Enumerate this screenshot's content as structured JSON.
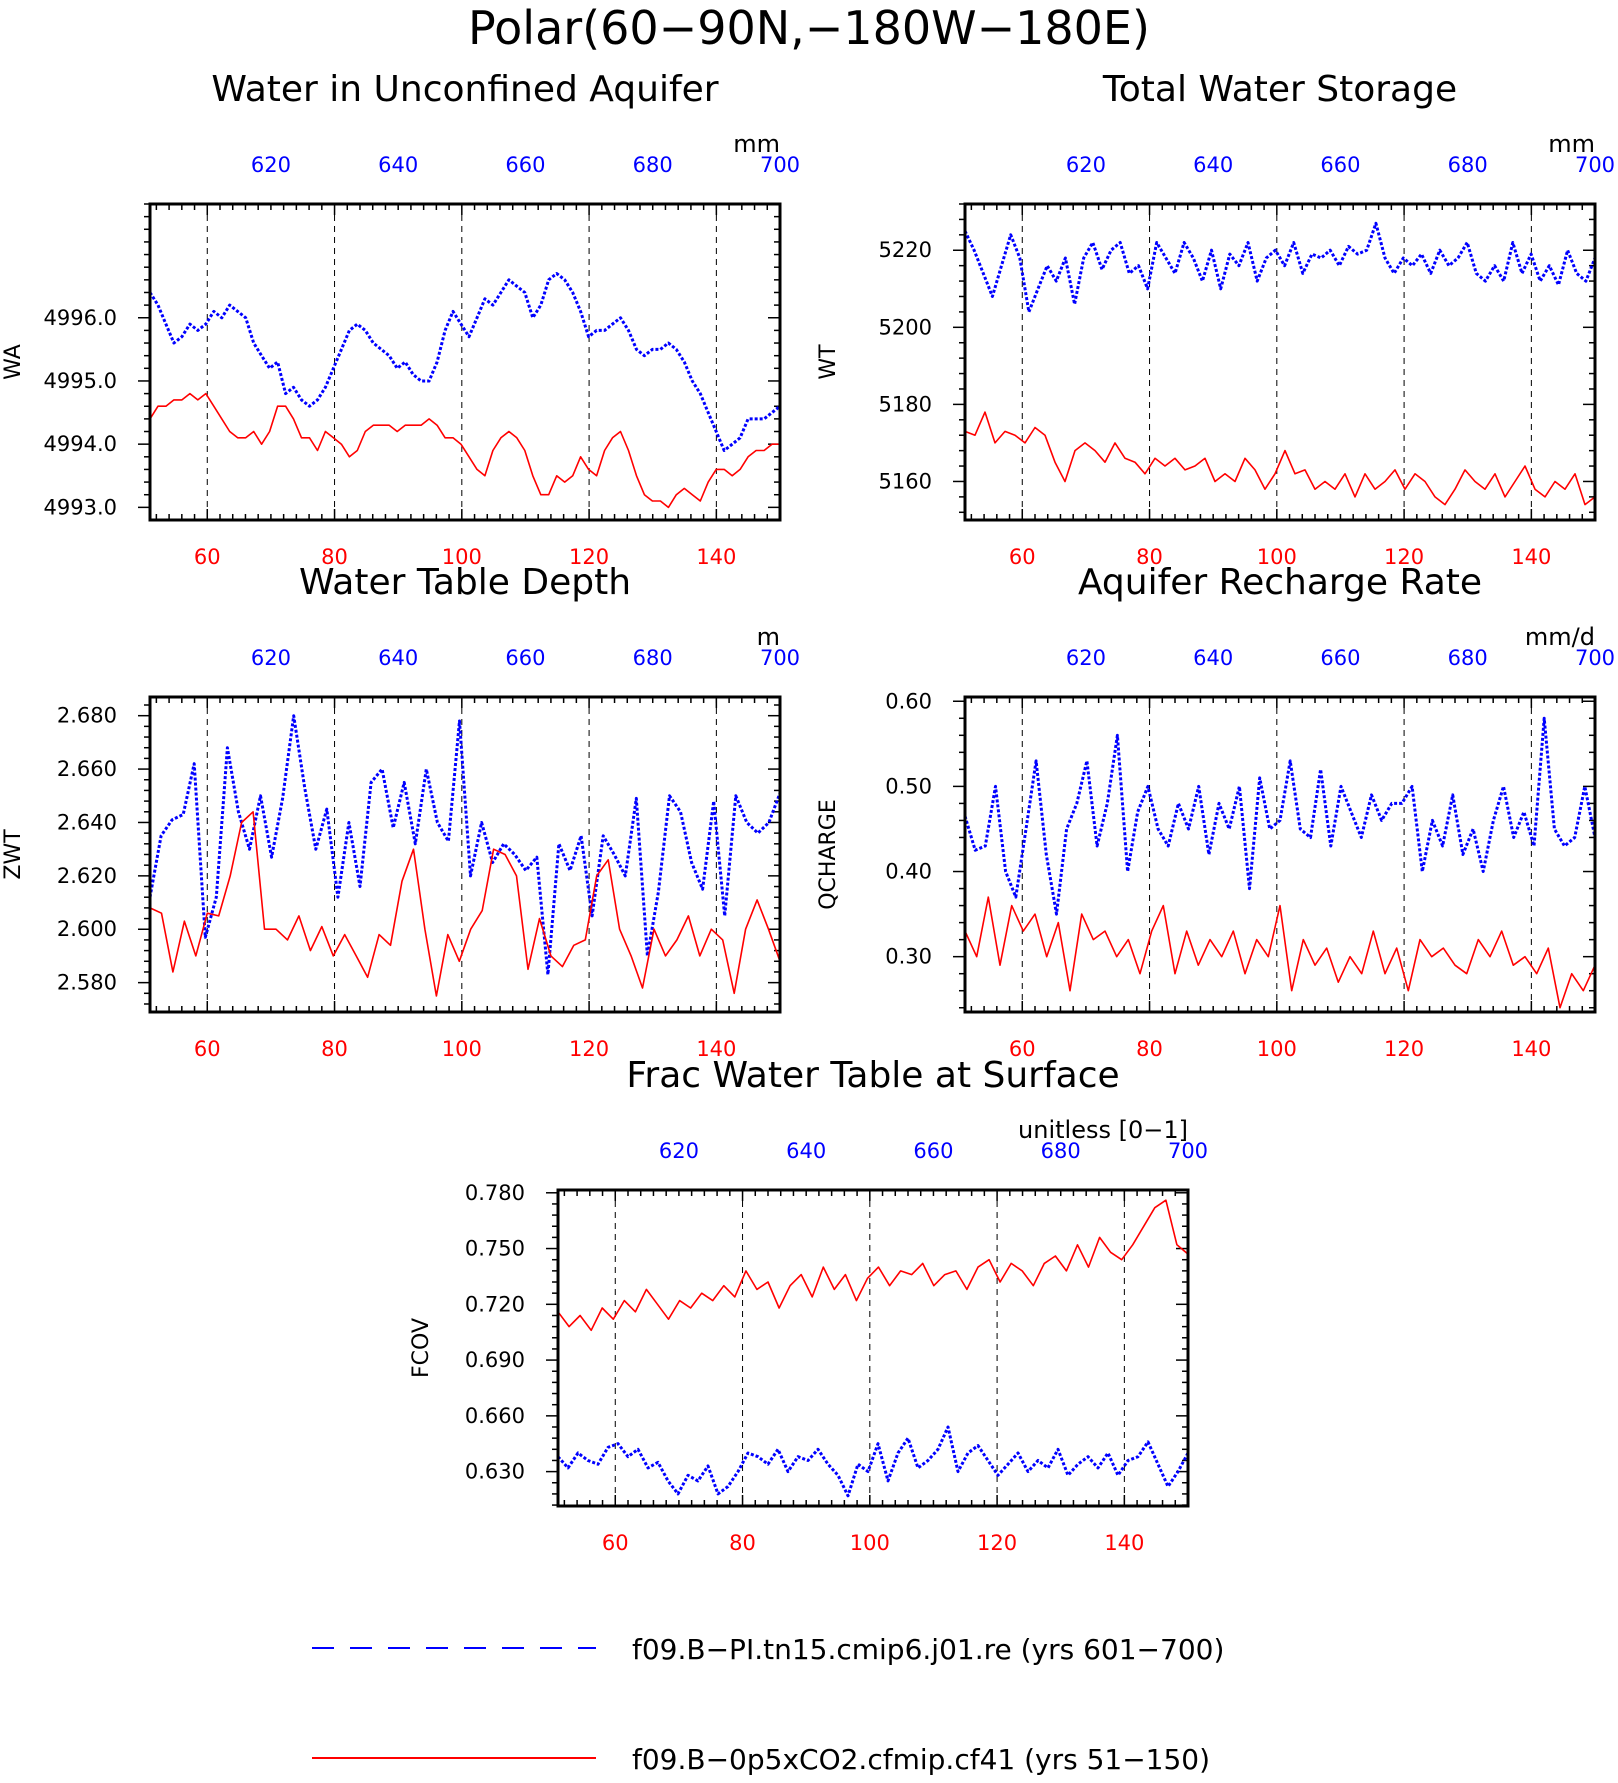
{
  "figure_title": "Polar(60−90N,−180W−180E)",
  "legend": [
    {
      "label": "f09.B−PI.tn15.cmip6.j01.re (yrs 601−700)",
      "color": "#0000ff",
      "style": "dashed"
    },
    {
      "label": "f09.B−0p5xCO2.cfmip.cf41 (yrs 51−150)",
      "color": "#ff0000",
      "style": "solid"
    }
  ],
  "colors": {
    "series_a": "#0000ff",
    "series_b": "#ff0000",
    "axis": "#000000"
  },
  "chart_data": [
    {
      "type": "line",
      "title": "Water in Unconfined Aquifer",
      "ylabel": "WA",
      "units": "mm",
      "ylim": [
        4992.8,
        4997.8
      ],
      "yticks": [
        4993.0,
        4994.0,
        4995.0,
        4996.0
      ],
      "ytick_labels": [
        "4993.0",
        "4994.0",
        "4995.0",
        "4996.0"
      ],
      "x_bottom_ticks": [
        60,
        80,
        100,
        120,
        140
      ],
      "x_top_ticks": [
        620,
        640,
        660,
        680,
        700
      ],
      "grid_x": [
        60,
        80,
        100,
        120,
        140
      ],
      "series": [
        {
          "years": "601-700",
          "style": "dotted",
          "color": "#0000ff",
          "values": [
            4996.4,
            4996.2,
            4995.9,
            4995.6,
            4995.7,
            4995.9,
            4995.8,
            4995.9,
            4996.1,
            4996.0,
            4996.2,
            4996.1,
            4996.0,
            4995.6,
            4995.4,
            4995.2,
            4995.3,
            4994.8,
            4994.9,
            4994.7,
            4994.6,
            4994.7,
            4994.9,
            4995.2,
            4995.5,
            4995.8,
            4995.9,
            4995.8,
            4995.6,
            4995.5,
            4995.4,
            4995.2,
            4995.3,
            4995.1,
            4995.0,
            4995.0,
            4995.3,
            4995.8,
            4996.1,
            4995.9,
            4995.7,
            4996.0,
            4996.3,
            4996.2,
            4996.4,
            4996.6,
            4996.5,
            4996.4,
            4996.0,
            4996.2,
            4996.6,
            4996.7,
            4996.6,
            4996.4,
            4996.1,
            4995.7,
            4995.8,
            4995.8,
            4995.9,
            4996.0,
            4995.8,
            4995.5,
            4995.4,
            4995.5,
            4995.5,
            4995.6,
            4995.5,
            4995.3,
            4995.0,
            4994.8,
            4994.5,
            4994.2,
            4993.9,
            4994.0,
            4994.1,
            4994.4,
            4994.4,
            4994.4,
            4994.5,
            4994.6
          ]
        },
        {
          "years": "51-150",
          "style": "solid",
          "color": "#ff0000",
          "values": [
            4994.4,
            4994.6,
            4994.6,
            4994.7,
            4994.7,
            4994.8,
            4994.7,
            4994.8,
            4994.6,
            4994.4,
            4994.2,
            4994.1,
            4994.1,
            4994.2,
            4994.0,
            4994.2,
            4994.6,
            4994.6,
            4994.4,
            4994.1,
            4994.1,
            4993.9,
            4994.2,
            4994.1,
            4994.0,
            4993.8,
            4993.9,
            4994.2,
            4994.3,
            4994.3,
            4994.3,
            4994.2,
            4994.3,
            4994.3,
            4994.3,
            4994.4,
            4994.3,
            4994.1,
            4994.1,
            4994.0,
            4993.8,
            4993.6,
            4993.5,
            4993.9,
            4994.1,
            4994.2,
            4994.1,
            4993.9,
            4993.5,
            4993.2,
            4993.2,
            4993.5,
            4993.4,
            4993.5,
            4993.8,
            4993.6,
            4993.5,
            4993.9,
            4994.1,
            4994.2,
            4993.9,
            4993.5,
            4993.2,
            4993.1,
            4993.1,
            4993.0,
            4993.2,
            4993.3,
            4993.2,
            4993.1,
            4993.4,
            4993.6,
            4993.6,
            4993.5,
            4993.6,
            4993.8,
            4993.9,
            4993.9,
            4994.0,
            4994.0
          ]
        }
      ]
    },
    {
      "type": "line",
      "title": "Total Water Storage",
      "ylabel": "WT",
      "units": "mm",
      "ylim": [
        5150,
        5232
      ],
      "yticks": [
        5160,
        5180,
        5200,
        5220
      ],
      "ytick_labels": [
        "5160",
        "5180",
        "5200",
        "5220"
      ],
      "x_bottom_ticks": [
        60,
        80,
        100,
        120,
        140
      ],
      "x_top_ticks": [
        620,
        640,
        660,
        680,
        700
      ],
      "grid_x": [
        60,
        80,
        100,
        120,
        140
      ],
      "series": [
        {
          "years": "601-700",
          "style": "dotted",
          "color": "#0000ff",
          "values": [
            5225,
            5220,
            5214,
            5208,
            5216,
            5224,
            5218,
            5204,
            5210,
            5216,
            5212,
            5218,
            5206,
            5218,
            5222,
            5215,
            5220,
            5222,
            5214,
            5216,
            5210,
            5222,
            5218,
            5214,
            5222,
            5218,
            5212,
            5220,
            5210,
            5219,
            5216,
            5222,
            5212,
            5218,
            5220,
            5216,
            5222,
            5214,
            5219,
            5218,
            5220,
            5216,
            5221,
            5219,
            5220,
            5227,
            5218,
            5214,
            5218,
            5216,
            5219,
            5214,
            5220,
            5216,
            5218,
            5222,
            5214,
            5212,
            5216,
            5212,
            5222,
            5214,
            5219,
            5212,
            5216,
            5211,
            5220,
            5214,
            5212,
            5218
          ]
        },
        {
          "years": "51-150",
          "style": "solid",
          "color": "#ff0000",
          "values": [
            5173,
            5172,
            5178,
            5170,
            5173,
            5172,
            5170,
            5174,
            5172,
            5165,
            5160,
            5168,
            5170,
            5168,
            5165,
            5170,
            5166,
            5165,
            5162,
            5166,
            5164,
            5166,
            5163,
            5164,
            5166,
            5160,
            5162,
            5160,
            5166,
            5163,
            5158,
            5162,
            5168,
            5162,
            5163,
            5158,
            5160,
            5158,
            5162,
            5156,
            5162,
            5158,
            5160,
            5163,
            5158,
            5162,
            5160,
            5156,
            5154,
            5158,
            5163,
            5160,
            5158,
            5162,
            5156,
            5160,
            5164,
            5158,
            5156,
            5160,
            5158,
            5162,
            5154,
            5156
          ]
        }
      ]
    },
    {
      "type": "line",
      "title": "Water Table Depth",
      "ylabel": "ZWT",
      "units": "m",
      "ylim": [
        2.569,
        2.687
      ],
      "yticks": [
        2.58,
        2.6,
        2.62,
        2.64,
        2.66,
        2.68
      ],
      "ytick_labels": [
        "2.580",
        "2.600",
        "2.620",
        "2.640",
        "2.660",
        "2.680"
      ],
      "x_bottom_ticks": [
        60,
        80,
        100,
        120,
        140
      ],
      "x_top_ticks": [
        620,
        640,
        660,
        680,
        700
      ],
      "grid_x": [
        60,
        80,
        100,
        120,
        140
      ],
      "series": [
        {
          "years": "601-700",
          "style": "dotted",
          "color": "#0000ff",
          "values": [
            2.612,
            2.635,
            2.641,
            2.643,
            2.662,
            2.597,
            2.612,
            2.668,
            2.644,
            2.63,
            2.65,
            2.627,
            2.649,
            2.68,
            2.653,
            2.63,
            2.645,
            2.612,
            2.64,
            2.616,
            2.655,
            2.66,
            2.638,
            2.655,
            2.632,
            2.66,
            2.64,
            2.633,
            2.678,
            2.62,
            2.64,
            2.625,
            2.632,
            2.628,
            2.622,
            2.627,
            2.583,
            2.632,
            2.622,
            2.635,
            2.605,
            2.635,
            2.628,
            2.62,
            2.649,
            2.59,
            2.614,
            2.65,
            2.644,
            2.625,
            2.615,
            2.648,
            2.605,
            2.65,
            2.64,
            2.636,
            2.64,
            2.651
          ]
        },
        {
          "years": "51-150",
          "style": "solid",
          "color": "#ff0000",
          "values": [
            2.608,
            2.606,
            2.584,
            2.603,
            2.59,
            2.606,
            2.605,
            2.62,
            2.64,
            2.644,
            2.6,
            2.6,
            2.596,
            2.605,
            2.592,
            2.601,
            2.59,
            2.598,
            2.59,
            2.582,
            2.598,
            2.594,
            2.618,
            2.63,
            2.6,
            2.575,
            2.598,
            2.588,
            2.6,
            2.607,
            2.63,
            2.628,
            2.62,
            2.585,
            2.604,
            2.59,
            2.586,
            2.594,
            2.596,
            2.62,
            2.626,
            2.6,
            2.59,
            2.578,
            2.6,
            2.59,
            2.596,
            2.605,
            2.59,
            2.6,
            2.596,
            2.576,
            2.6,
            2.611,
            2.6,
            2.588
          ]
        }
      ]
    },
    {
      "type": "line",
      "title": "Aquifer Recharge Rate",
      "ylabel": "QCHARGE",
      "units": "mm/d",
      "ylim": [
        0.235,
        0.605
      ],
      "yticks": [
        0.3,
        0.4,
        0.5,
        0.6
      ],
      "ytick_labels": [
        "0.30",
        "0.40",
        "0.50",
        "0.60"
      ],
      "x_bottom_ticks": [
        60,
        80,
        100,
        120,
        140
      ],
      "x_top_ticks": [
        620,
        640,
        660,
        680,
        700
      ],
      "grid_x": [
        60,
        80,
        100,
        120,
        140
      ],
      "series": [
        {
          "years": "601-700",
          "style": "dotted",
          "color": "#0000ff",
          "values": [
            0.465,
            0.425,
            0.43,
            0.5,
            0.4,
            0.37,
            0.45,
            0.53,
            0.42,
            0.35,
            0.45,
            0.48,
            0.53,
            0.43,
            0.48,
            0.56,
            0.4,
            0.47,
            0.5,
            0.45,
            0.43,
            0.48,
            0.45,
            0.5,
            0.42,
            0.48,
            0.45,
            0.5,
            0.38,
            0.51,
            0.45,
            0.46,
            0.53,
            0.45,
            0.44,
            0.52,
            0.43,
            0.5,
            0.47,
            0.44,
            0.49,
            0.46,
            0.48,
            0.48,
            0.5,
            0.4,
            0.46,
            0.43,
            0.49,
            0.42,
            0.45,
            0.4,
            0.46,
            0.5,
            0.44,
            0.47,
            0.43,
            0.58,
            0.45,
            0.43,
            0.44,
            0.5,
            0.44
          ]
        },
        {
          "years": "51-150",
          "style": "solid",
          "color": "#ff0000",
          "values": [
            0.33,
            0.3,
            0.37,
            0.29,
            0.36,
            0.33,
            0.35,
            0.3,
            0.34,
            0.26,
            0.35,
            0.32,
            0.33,
            0.3,
            0.32,
            0.28,
            0.33,
            0.36,
            0.28,
            0.33,
            0.29,
            0.32,
            0.3,
            0.33,
            0.28,
            0.32,
            0.3,
            0.36,
            0.26,
            0.32,
            0.29,
            0.31,
            0.27,
            0.3,
            0.28,
            0.33,
            0.28,
            0.31,
            0.26,
            0.32,
            0.3,
            0.31,
            0.29,
            0.28,
            0.32,
            0.3,
            0.33,
            0.29,
            0.3,
            0.28,
            0.31,
            0.24,
            0.28,
            0.26,
            0.29
          ]
        }
      ]
    },
    {
      "type": "line",
      "title": "Frac Water Table at Surface",
      "ylabel": "FCOV",
      "units": "unitless [0−1]",
      "ylim": [
        0.6115,
        0.7815
      ],
      "yticks": [
        0.63,
        0.66,
        0.69,
        0.72,
        0.75,
        0.78
      ],
      "ytick_labels": [
        "0.630",
        "0.660",
        "0.690",
        "0.720",
        "0.750",
        "0.780"
      ],
      "x_bottom_ticks": [
        60,
        80,
        100,
        120,
        140
      ],
      "x_top_ticks": [
        620,
        640,
        660,
        680,
        700
      ],
      "grid_x": [
        60,
        80,
        100,
        120,
        140
      ],
      "series": [
        {
          "years": "601-700",
          "style": "dotted",
          "color": "#0000ff",
          "values": [
            0.638,
            0.632,
            0.64,
            0.636,
            0.634,
            0.643,
            0.645,
            0.638,
            0.642,
            0.632,
            0.635,
            0.625,
            0.618,
            0.628,
            0.625,
            0.633,
            0.618,
            0.622,
            0.63,
            0.64,
            0.638,
            0.634,
            0.642,
            0.63,
            0.638,
            0.636,
            0.642,
            0.634,
            0.628,
            0.617,
            0.634,
            0.63,
            0.645,
            0.625,
            0.64,
            0.648,
            0.632,
            0.636,
            0.642,
            0.654,
            0.63,
            0.64,
            0.644,
            0.636,
            0.628,
            0.634,
            0.64,
            0.63,
            0.636,
            0.632,
            0.642,
            0.628,
            0.634,
            0.638,
            0.632,
            0.64,
            0.628,
            0.636,
            0.638,
            0.646,
            0.634,
            0.622,
            0.63,
            0.64
          ]
        },
        {
          "years": "51-150",
          "style": "solid",
          "color": "#ff0000",
          "values": [
            0.716,
            0.708,
            0.714,
            0.706,
            0.718,
            0.712,
            0.722,
            0.716,
            0.728,
            0.72,
            0.712,
            0.722,
            0.718,
            0.726,
            0.722,
            0.73,
            0.724,
            0.738,
            0.728,
            0.732,
            0.718,
            0.73,
            0.736,
            0.724,
            0.74,
            0.728,
            0.736,
            0.722,
            0.734,
            0.74,
            0.73,
            0.738,
            0.736,
            0.742,
            0.73,
            0.736,
            0.738,
            0.728,
            0.74,
            0.744,
            0.732,
            0.742,
            0.738,
            0.73,
            0.742,
            0.746,
            0.738,
            0.752,
            0.74,
            0.756,
            0.748,
            0.744,
            0.752,
            0.762,
            0.772,
            0.776,
            0.752,
            0.747
          ]
        }
      ]
    }
  ]
}
